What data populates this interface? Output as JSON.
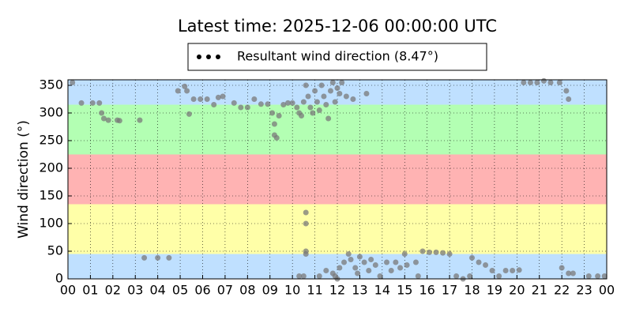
{
  "chart_data": {
    "type": "scatter",
    "title": "Latest time: 2025-12-06 00:00:00 UTC",
    "y_label": "Wind direction (°)",
    "legend_location": "upper center",
    "grid": true,
    "bands": [
      {
        "from": 0,
        "to": 45,
        "color": "#bfe0ff"
      },
      {
        "from": 45,
        "to": 135,
        "color": "#ffffa8"
      },
      {
        "from": 135,
        "to": 225,
        "color": "#ffb3b3"
      },
      {
        "from": 225,
        "to": 315,
        "color": "#b3ffb3"
      },
      {
        "from": 315,
        "to": 360,
        "color": "#bfe0ff"
      }
    ],
    "xlim": [
      0,
      24
    ],
    "ylim": [
      0,
      360
    ],
    "xticks": [
      {
        "value": 0,
        "label": "00"
      },
      {
        "value": 1,
        "label": "01"
      },
      {
        "value": 2,
        "label": "02"
      },
      {
        "value": 3,
        "label": "03"
      },
      {
        "value": 4,
        "label": "04"
      },
      {
        "value": 5,
        "label": "05"
      },
      {
        "value": 6,
        "label": "06"
      },
      {
        "value": 7,
        "label": "07"
      },
      {
        "value": 8,
        "label": "08"
      },
      {
        "value": 9,
        "label": "09"
      },
      {
        "value": 10,
        "label": "10"
      },
      {
        "value": 11,
        "label": "11"
      },
      {
        "value": 12,
        "label": "12"
      },
      {
        "value": 13,
        "label": "13"
      },
      {
        "value": 14,
        "label": "14"
      },
      {
        "value": 15,
        "label": "15"
      },
      {
        "value": 16,
        "label": "16"
      },
      {
        "value": 17,
        "label": "17"
      },
      {
        "value": 18,
        "label": "18"
      },
      {
        "value": 19,
        "label": "19"
      },
      {
        "value": 20,
        "label": "20"
      },
      {
        "value": 21,
        "label": "21"
      },
      {
        "value": 22,
        "label": "22"
      },
      {
        "value": 23,
        "label": "23"
      },
      {
        "value": 24,
        "label": "00"
      }
    ],
    "yticks": [
      0,
      50,
      100,
      150,
      200,
      250,
      300,
      350
    ],
    "series": [
      {
        "name": "Resultant wind direction (8.47°)",
        "color": "#7a7a7a",
        "x": [
          0.2,
          0.6,
          1.1,
          1.4,
          1.5,
          1.6,
          1.8,
          2.2,
          2.3,
          3.2,
          3.4,
          4.0,
          4.5,
          4.9,
          5.2,
          5.3,
          5.4,
          5.6,
          5.9,
          6.2,
          6.5,
          6.7,
          6.9,
          7.4,
          7.7,
          8.0,
          8.3,
          8.6,
          8.9,
          9.1,
          9.2,
          9.2,
          9.3,
          9.4,
          9.6,
          9.8,
          10.0,
          10.2,
          10.3,
          10.4,
          10.5,
          10.6,
          10.7,
          10.8,
          10.9,
          11.0,
          11.1,
          11.2,
          11.3,
          11.4,
          11.5,
          11.6,
          11.7,
          11.8,
          11.9,
          12.0,
          12.1,
          12.2,
          12.4,
          12.7,
          13.3,
          10.3,
          10.5,
          10.6,
          10.6,
          10.6,
          10.6,
          11.2,
          11.5,
          11.8,
          11.9,
          12.0,
          12.1,
          12.3,
          12.5,
          12.6,
          12.8,
          12.9,
          13.0,
          13.2,
          13.4,
          13.5,
          13.7,
          13.9,
          14.2,
          14.4,
          14.6,
          14.8,
          15.0,
          15.1,
          15.5,
          15.6,
          15.8,
          16.1,
          16.4,
          16.7,
          17.0,
          17.3,
          17.6,
          17.9,
          18.0,
          18.3,
          18.6,
          18.9,
          19.2,
          19.5,
          19.8,
          20.1,
          20.3,
          20.6,
          20.9,
          21.2,
          21.5,
          21.9,
          22.2,
          22.3,
          22.0,
          22.3,
          22.5,
          23.2,
          23.6,
          23.9
        ],
        "values": [
          355,
          318,
          318,
          318,
          300,
          290,
          287,
          287,
          286,
          287,
          38,
          38,
          38,
          340,
          348,
          340,
          298,
          325,
          325,
          325,
          315,
          328,
          330,
          318,
          310,
          310,
          325,
          316,
          316,
          300,
          280,
          260,
          255,
          295,
          315,
          318,
          318,
          310,
          300,
          295,
          320,
          350,
          330,
          310,
          300,
          340,
          320,
          305,
          350,
          330,
          315,
          290,
          340,
          355,
          320,
          345,
          335,
          355,
          330,
          325,
          335,
          5,
          5,
          50,
          45,
          120,
          100,
          5,
          15,
          10,
          5,
          0,
          20,
          30,
          45,
          35,
          20,
          10,
          40,
          30,
          15,
          35,
          25,
          5,
          30,
          15,
          30,
          20,
          45,
          25,
          30,
          5,
          50,
          48,
          48,
          47,
          45,
          5,
          0,
          5,
          38,
          30,
          25,
          15,
          5,
          15,
          15,
          16,
          355,
          355,
          355,
          358,
          355,
          355,
          340,
          325,
          20,
          10,
          10,
          5,
          5,
          5
        ]
      }
    ]
  }
}
